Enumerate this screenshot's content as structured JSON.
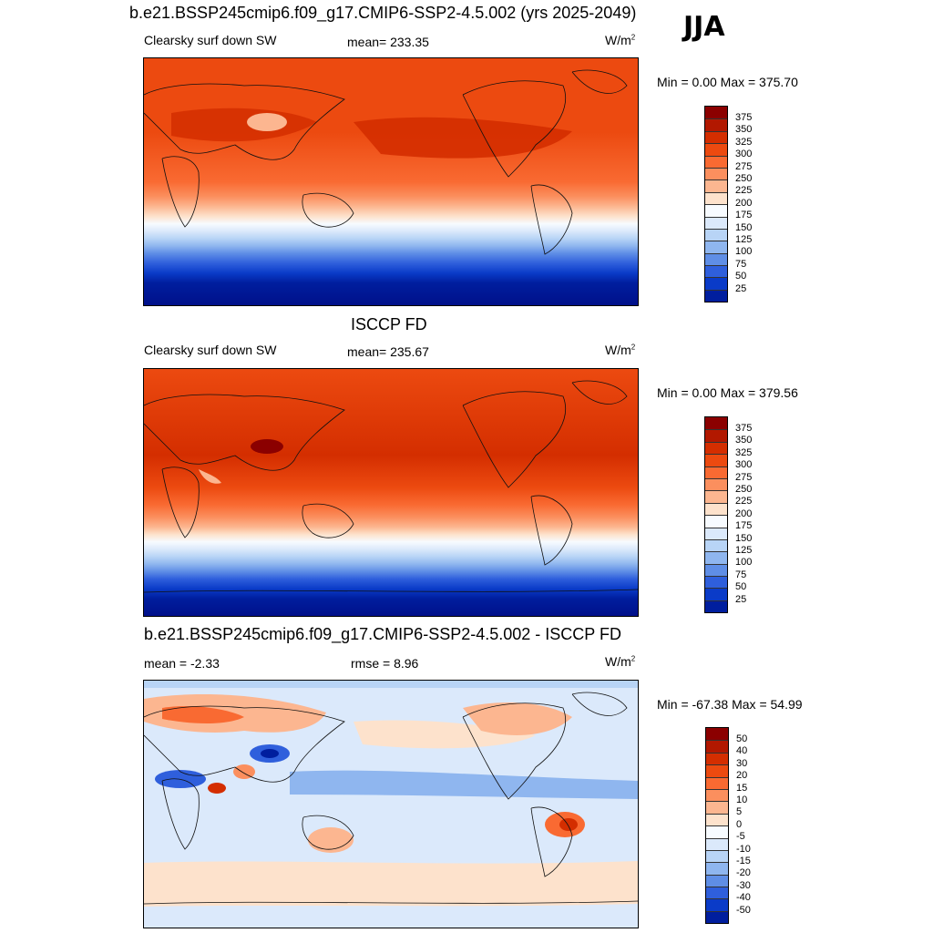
{
  "header": {
    "title": "b.e21.BSSP245cmip6.f09_g17.CMIP6-SSP2-4.5.002 (yrs 2025-2049)",
    "season": "JJA"
  },
  "panels": [
    {
      "id": "model",
      "variable": "Clearsky surf down SW",
      "stat": "mean= 233.35",
      "units": "W/m",
      "units_sup": "2",
      "minmax": "Min =   0.00 Max = 375.70",
      "colorbar": {
        "labels": [
          "375",
          "350",
          "325",
          "300",
          "275",
          "250",
          "225",
          "200",
          "175",
          "150",
          "125",
          "100",
          "75",
          "50",
          "25"
        ],
        "colors": [
          "#8b0000",
          "#b21800",
          "#d42e00",
          "#ec4a10",
          "#f96a32",
          "#fb8f5e",
          "#fcb690",
          "#fde2cc",
          "#f7fbff",
          "#dbe9fb",
          "#b8d4f6",
          "#8fb6ef",
          "#5f8ee6",
          "#2f5fdc",
          "#0a3bc8",
          "#001e9e"
        ]
      }
    },
    {
      "id": "obs",
      "title": "ISCCP FD",
      "variable": "Clearsky surf down SW",
      "stat": "mean= 235.67",
      "units": "W/m",
      "units_sup": "2",
      "minmax": "Min =   0.00 Max = 379.56",
      "colorbar": {
        "labels": [
          "375",
          "350",
          "325",
          "300",
          "275",
          "250",
          "225",
          "200",
          "175",
          "150",
          "125",
          "100",
          "75",
          "50",
          "25"
        ],
        "colors": [
          "#8b0000",
          "#b21800",
          "#d42e00",
          "#ec4a10",
          "#f96a32",
          "#fb8f5e",
          "#fcb690",
          "#fde2cc",
          "#f7fbff",
          "#dbe9fb",
          "#b8d4f6",
          "#8fb6ef",
          "#5f8ee6",
          "#2f5fdc",
          "#0a3bc8",
          "#001e9e"
        ]
      }
    },
    {
      "id": "diff",
      "title": "b.e21.BSSP245cmip6.f09_g17.CMIP6-SSP2-4.5.002 - ISCCP FD",
      "stat_left": "mean =  -2.33",
      "stat_mid": "rmse =   8.96",
      "units": "W/m",
      "units_sup": "2",
      "minmax": "Min = -67.38 Max =  54.99",
      "colorbar": {
        "labels": [
          "50",
          "40",
          "30",
          "20",
          "15",
          "10",
          "5",
          "0",
          "-5",
          "-10",
          "-15",
          "-20",
          "-30",
          "-40",
          "-50"
        ],
        "colors": [
          "#8b0000",
          "#b21800",
          "#d42e00",
          "#ec4a10",
          "#f96a32",
          "#fb8f5e",
          "#fcb690",
          "#fde2cc",
          "#f7fbff",
          "#dbe9fb",
          "#b8d4f6",
          "#8fb6ef",
          "#5f8ee6",
          "#2f5fdc",
          "#0a3bc8",
          "#001e9e"
        ]
      }
    }
  ]
}
